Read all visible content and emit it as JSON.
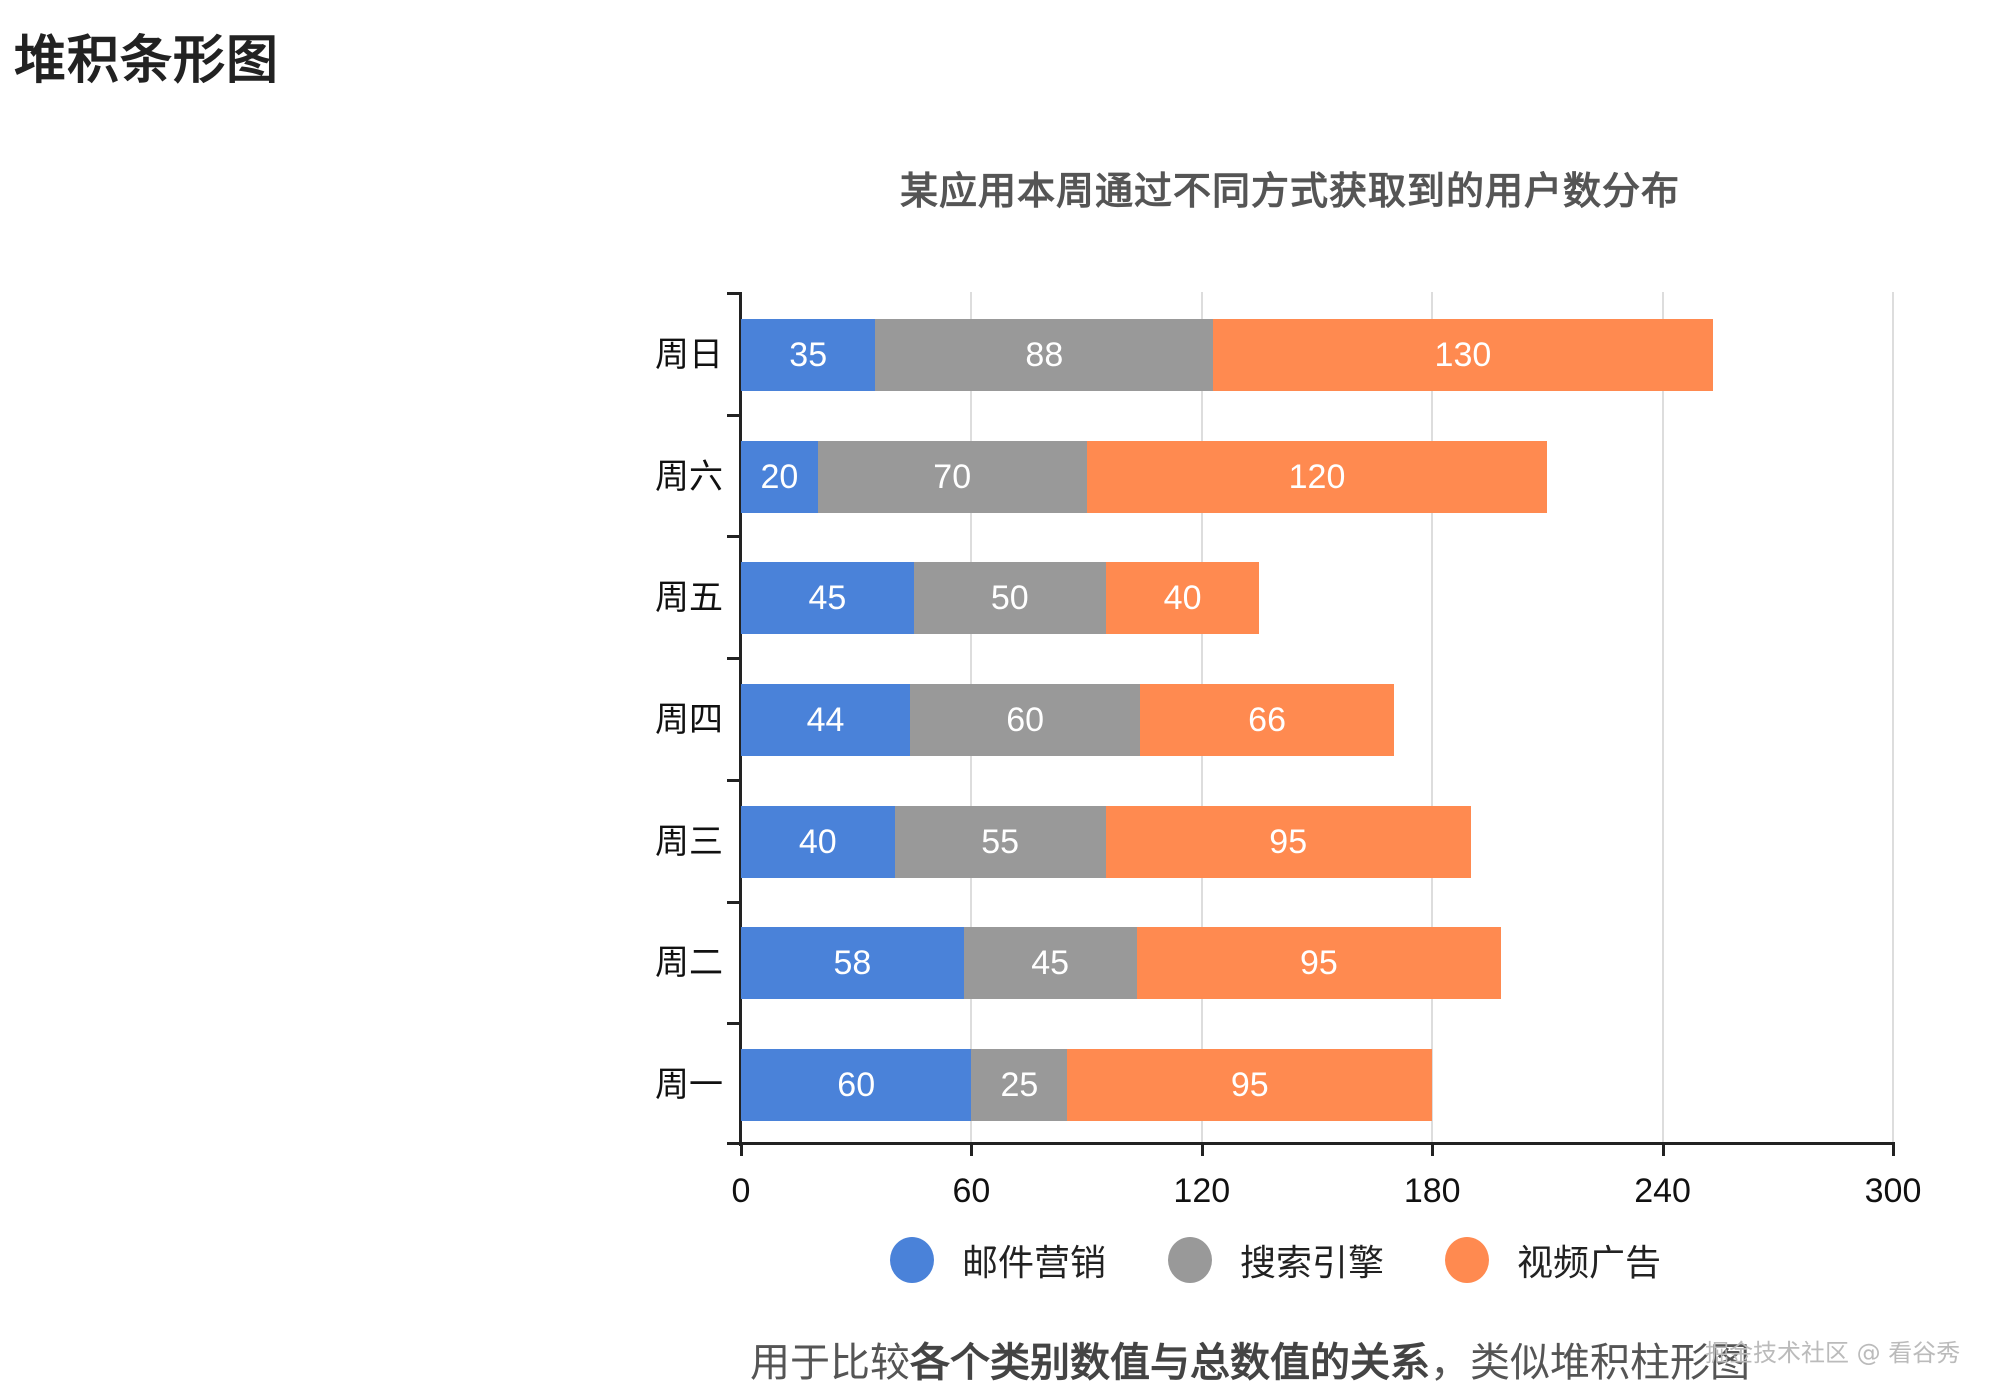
{
  "page": {
    "title": "堆积条形图",
    "caption_prefix": "用于比较",
    "caption_bold": "各个类别数值与总数值的关系",
    "caption_suffix": "，类似堆积柱形图",
    "watermark": "掘金技术社区 @ 看谷秀"
  },
  "colors": {
    "email": "#4a82d9",
    "search": "#999999",
    "video": "#ff8a50"
  },
  "chart_data": {
    "type": "bar",
    "orientation": "horizontal",
    "stacked": true,
    "title": "某应用本周通过不同方式获取到的用户数分布",
    "xlabel": "",
    "ylabel": "",
    "xlim": [
      0,
      300
    ],
    "x_ticks": [
      "0",
      "60",
      "120",
      "180",
      "240",
      "300"
    ],
    "grid": true,
    "legend_position": "bottom",
    "categories": [
      "周日",
      "周六",
      "周五",
      "周四",
      "周三",
      "周二",
      "周一"
    ],
    "series": [
      {
        "name": "邮件营销",
        "color": "#4a82d9",
        "values": [
          35,
          20,
          45,
          44,
          40,
          58,
          60
        ]
      },
      {
        "name": "搜索引擎",
        "color": "#999999",
        "values": [
          88,
          70,
          50,
          60,
          55,
          45,
          25
        ]
      },
      {
        "name": "视频广告",
        "color": "#ff8a50",
        "values": [
          130,
          120,
          40,
          66,
          95,
          95,
          95
        ]
      }
    ]
  }
}
